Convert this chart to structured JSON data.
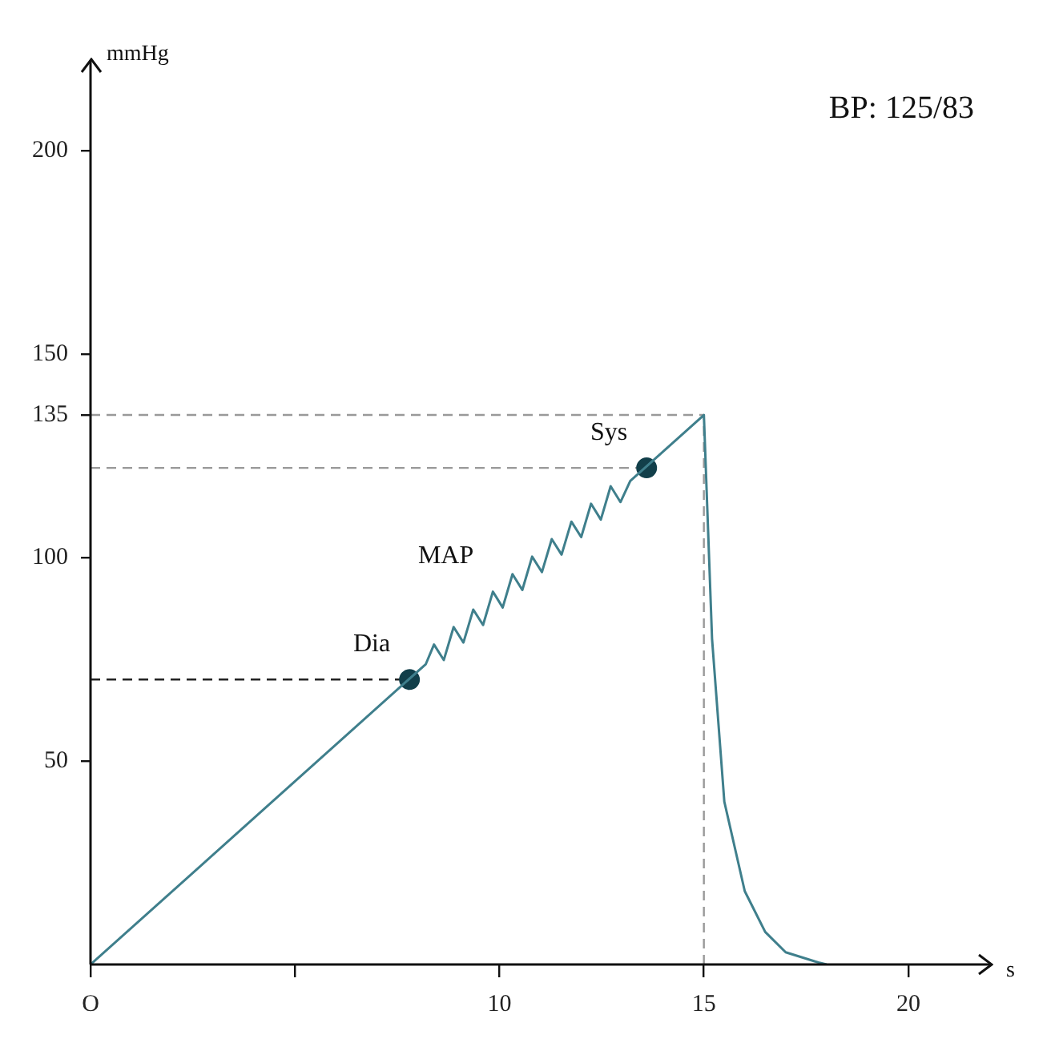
{
  "chart_data": {
    "type": "line",
    "xlabel": "s",
    "ylabel": "mmHg",
    "xlim": [
      0,
      22
    ],
    "ylim": [
      0,
      222
    ],
    "xticks": [
      {
        "value": 0,
        "label": "O"
      },
      {
        "value": 5,
        "label": null
      },
      10,
      15,
      20
    ],
    "yticks": [
      50,
      100,
      135,
      150,
      200
    ],
    "grid": false,
    "legend": false,
    "marker": "none",
    "line_style": "solid",
    "series": [
      {
        "color": "#3f7f8c",
        "x": [
          0,
          8.2,
          8.4,
          8.64,
          8.88,
          9.12,
          9.36,
          9.6,
          9.84,
          10.08,
          10.32,
          10.56,
          10.8,
          11.04,
          11.28,
          11.52,
          11.76,
          12.0,
          12.24,
          12.48,
          12.72,
          12.96,
          13.2,
          15,
          15.2,
          15.5,
          16,
          16.5,
          17,
          17.8,
          18
        ],
        "values": [
          0,
          73.8,
          78.6,
          74.8,
          82.9,
          79.1,
          87.2,
          83.4,
          91.6,
          87.7,
          95.9,
          92.0,
          100.2,
          96.4,
          104.5,
          100.7,
          108.8,
          105,
          113.2,
          109.3,
          117.5,
          113.6,
          118.8,
          135,
          80,
          40,
          18,
          8,
          3,
          0.5,
          0
        ]
      },
      {
        "type": "scatter",
        "marker": "circle",
        "color": "#123f4a",
        "x": [
          7.8,
          13.6
        ],
        "values": [
          70,
          122
        ]
      }
    ],
    "ref_lines": [
      {
        "axis": "y",
        "value": 135,
        "color": "#999999",
        "line_style": "dashed"
      },
      {
        "axis": "y",
        "value": 122,
        "color": "#999999",
        "line_style": "dashed"
      },
      {
        "axis": "y",
        "value": 70,
        "color": "#222222",
        "line_style": "dashed"
      },
      {
        "axis": "x",
        "value": 15,
        "color": "#999999",
        "line_style": "dashed"
      }
    ],
    "annotations": [
      "BP: 125/83",
      {
        "text": "Sys",
        "x": 13.6,
        "y": 122
      },
      {
        "text": "Dia",
        "x": 7.8,
        "y": 70
      },
      {
        "text": "MAP",
        "x": 9.84,
        "y": 91.6
      }
    ]
  }
}
